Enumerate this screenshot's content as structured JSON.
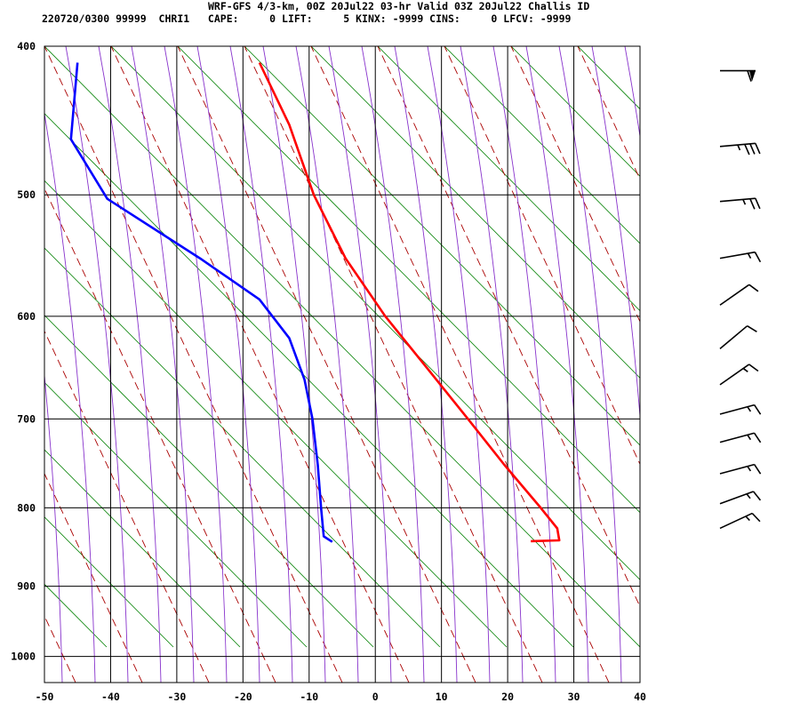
{
  "header": {
    "line1": "WRF-GFS 4/3-km, 00Z 20Jul22 03-hr Valid 03Z 20Jul22 Challis ID",
    "line2": "220720/0300 99999  CHRI1   CAPE:     0 LIFT:     5 KINX: -9999 CINS:     0 LFCV: -9999"
  },
  "colors": {
    "temperature": "#ff0000",
    "dewpoint": "#0000ff",
    "dry_adiabat": "#aa0000",
    "moist_adiabat": "#8833cc",
    "isotherm_green": "#008000",
    "grid": "#000000"
  },
  "chart_data": {
    "type": "line",
    "title": "",
    "xlabel": "",
    "ylabel": "",
    "x_axis": {
      "ticks": [
        -50,
        -40,
        -30,
        -20,
        -10,
        0,
        10,
        20,
        30,
        40
      ],
      "range": [
        -50,
        40
      ]
    },
    "y_axis": {
      "ticks": [
        400,
        500,
        600,
        700,
        800,
        900,
        1000
      ],
      "range": [
        400,
        1040
      ],
      "scale": "log",
      "inverted": true
    },
    "grid": true,
    "background_lines": [
      "green diagonal lines",
      "dashed dark red dry adiabats",
      "purple moist adiabats"
    ],
    "series": [
      {
        "color": "#ff0000",
        "points": [
          {
            "p": 410,
            "x": -17.5
          },
          {
            "p": 450,
            "x": -13.0
          },
          {
            "p": 500,
            "x": -9.3
          },
          {
            "p": 550,
            "x": -4.5
          },
          {
            "p": 600,
            "x": 1.5
          },
          {
            "p": 650,
            "x": 8.0
          },
          {
            "p": 700,
            "x": 14.0
          },
          {
            "p": 750,
            "x": 19.5
          },
          {
            "p": 800,
            "x": 25.0
          },
          {
            "p": 825,
            "x": 27.5
          },
          {
            "p": 840,
            "x": 27.8
          },
          {
            "p": 841,
            "x": 23.5
          }
        ]
      },
      {
        "color": "#0000ff",
        "points": [
          {
            "p": 410,
            "x": -45.0
          },
          {
            "p": 460,
            "x": -46.0
          },
          {
            "p": 503,
            "x": -40.5
          },
          {
            "p": 550,
            "x": -26.5
          },
          {
            "p": 585,
            "x": -17.5
          },
          {
            "p": 620,
            "x": -13.0
          },
          {
            "p": 660,
            "x": -10.7
          },
          {
            "p": 700,
            "x": -9.5
          },
          {
            "p": 750,
            "x": -8.7
          },
          {
            "p": 800,
            "x": -8.2
          },
          {
            "p": 835,
            "x": -7.8
          },
          {
            "p": 842,
            "x": -6.5
          }
        ]
      }
    ],
    "wind_barbs": [
      {
        "p": 415,
        "dir": 270,
        "spd": 60
      },
      {
        "p": 465,
        "dir": 265,
        "spd": 35
      },
      {
        "p": 505,
        "dir": 265,
        "spd": 25
      },
      {
        "p": 550,
        "dir": 260,
        "spd": 15
      },
      {
        "p": 590,
        "dir": 235,
        "spd": 10
      },
      {
        "p": 630,
        "dir": 230,
        "spd": 10
      },
      {
        "p": 665,
        "dir": 235,
        "spd": 15
      },
      {
        "p": 695,
        "dir": 255,
        "spd": 15
      },
      {
        "p": 725,
        "dir": 255,
        "spd": 15
      },
      {
        "p": 760,
        "dir": 255,
        "spd": 15
      },
      {
        "p": 795,
        "dir": 250,
        "spd": 15
      },
      {
        "p": 825,
        "dir": 245,
        "spd": 15
      }
    ]
  }
}
